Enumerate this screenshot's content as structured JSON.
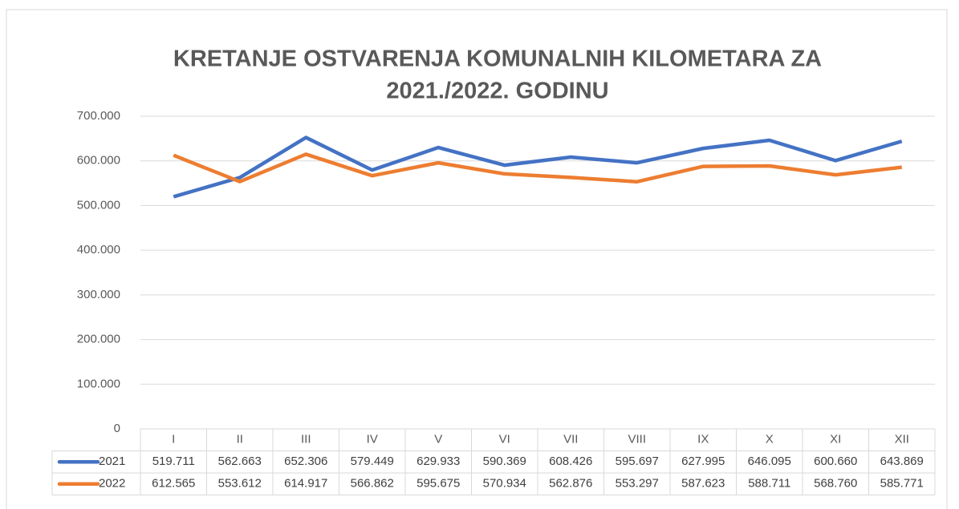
{
  "chart_data": {
    "type": "line",
    "title": [
      "KRETANJE OSTVARENJA KOMUNALNIH KILOMETARA ZA",
      "2021./2022. GODINU"
    ],
    "categories": [
      "I",
      "II",
      "III",
      "IV",
      "V",
      "VI",
      "VII",
      "VIII",
      "IX",
      "X",
      "XI",
      "XII"
    ],
    "series": [
      {
        "name": "2021",
        "color": "#4472c4",
        "values": [
          519711,
          562663,
          652306,
          579449,
          629933,
          590369,
          608426,
          595697,
          627995,
          646095,
          600660,
          643869
        ],
        "value_labels": [
          "519.711",
          "562.663",
          "652.306",
          "579.449",
          "629.933",
          "590.369",
          "608.426",
          "595.697",
          "627.995",
          "646.095",
          "600.660",
          "643.869"
        ]
      },
      {
        "name": "2022",
        "color": "#ed7d31",
        "values": [
          612565,
          553612,
          614917,
          566862,
          595675,
          570934,
          562876,
          553297,
          587623,
          588711,
          568760,
          585771
        ],
        "value_labels": [
          "612.565",
          "553.612",
          "614.917",
          "566.862",
          "595.675",
          "570.934",
          "562.876",
          "553.297",
          "587.623",
          "588.711",
          "568.760",
          "585.771"
        ]
      }
    ],
    "ylim": [
      0,
      700000
    ],
    "yticks": [
      0,
      {
        "value": 100000,
        "label": "100.000"
      },
      {
        "value": 200000,
        "label": "200.000"
      },
      {
        "value": 300000,
        "label": "300.000"
      },
      {
        "value": 400000,
        "label": "400.000"
      },
      {
        "value": 500000,
        "label": "500.000"
      },
      {
        "value": 600000,
        "label": "600.000"
      },
      {
        "value": 700000,
        "label": "700.000"
      }
    ],
    "grid": true
  }
}
